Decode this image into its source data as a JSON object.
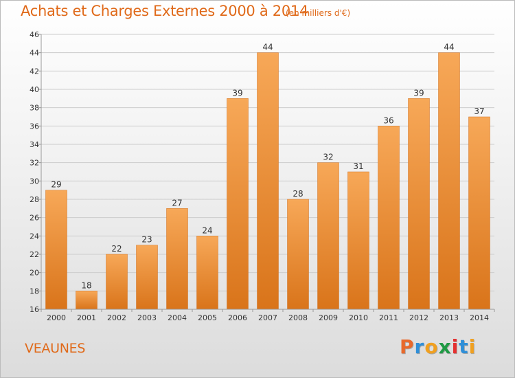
{
  "header": {
    "title": "Achats et Charges Externes 2000 à 2014",
    "subtitle": "(en milliers d'€)"
  },
  "footer": {
    "commune": "VEAUNES",
    "logo": "Proxiti"
  },
  "colors": {
    "title": "#e06a1a",
    "bar_light": "#f7a858",
    "bar_dark": "#d9741a",
    "grid": "#cccccc",
    "logo_letters": [
      "#e8692b",
      "#2f8fd8",
      "#f0a020",
      "#1f9a44",
      "#e53030",
      "#2f8fd8",
      "#f0a020"
    ]
  },
  "chart_data": {
    "type": "bar",
    "title": "Achats et Charges Externes 2000 à 2014",
    "subtitle": "(en milliers d'€)",
    "xlabel": "",
    "ylabel": "",
    "categories": [
      "2000",
      "2001",
      "2002",
      "2003",
      "2004",
      "2005",
      "2006",
      "2007",
      "2008",
      "2009",
      "2010",
      "2011",
      "2012",
      "2013",
      "2014"
    ],
    "values": [
      29,
      18,
      22,
      23,
      27,
      24,
      39,
      44,
      28,
      32,
      31,
      36,
      39,
      44,
      37
    ],
    "ylim": [
      16,
      46
    ],
    "yticks": [
      16,
      18,
      20,
      22,
      24,
      26,
      28,
      30,
      32,
      34,
      36,
      38,
      40,
      42,
      44,
      46
    ],
    "grid": true,
    "legend": "none"
  }
}
